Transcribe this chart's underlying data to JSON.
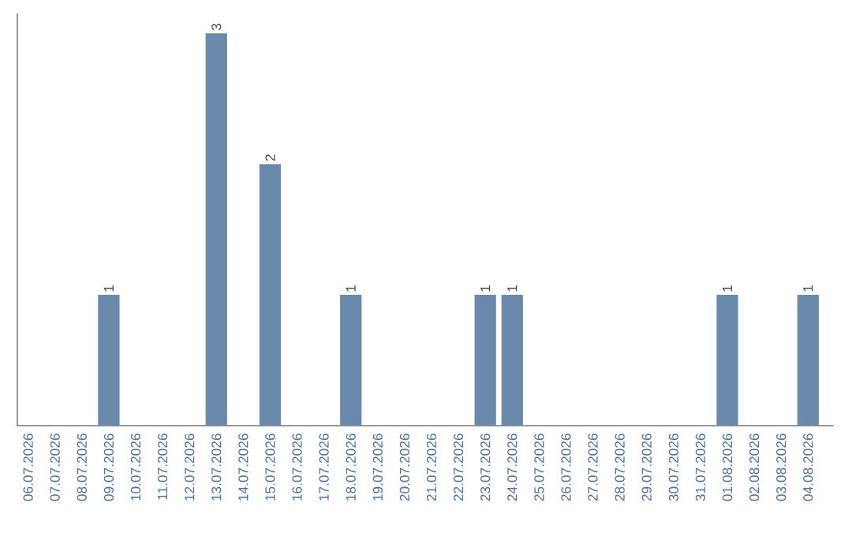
{
  "chart_data": {
    "type": "bar",
    "categories": [
      "06.07.2026",
      "07.07.2026",
      "08.07.2026",
      "09.07.2026",
      "10.07.2026",
      "11.07.2026",
      "12.07.2026",
      "13.07.2026",
      "14.07.2026",
      "15.07.2026",
      "16.07.2026",
      "17.07.2026",
      "18.07.2026",
      "19.07.2026",
      "20.07.2026",
      "21.07.2026",
      "22.07.2026",
      "23.07.2026",
      "24.07.2026",
      "25.07.2026",
      "26.07.2026",
      "27.07.2026",
      "28.07.2026",
      "29.07.2026",
      "30.07.2026",
      "31.07.2026",
      "01.08.2026",
      "02.08.2026",
      "03.08.2026",
      "04.08.2026"
    ],
    "values": [
      0,
      0,
      0,
      1,
      0,
      0,
      0,
      3,
      0,
      2,
      0,
      0,
      1,
      0,
      0,
      0,
      0,
      1,
      1,
      0,
      0,
      0,
      0,
      0,
      0,
      0,
      1,
      0,
      0,
      1
    ],
    "value_labels": [
      null,
      null,
      null,
      "1",
      null,
      null,
      null,
      "3",
      null,
      "2",
      null,
      null,
      "1",
      null,
      null,
      null,
      null,
      "1",
      "1",
      null,
      null,
      null,
      null,
      null,
      null,
      null,
      "1",
      null,
      null,
      "1"
    ],
    "color": "#6a8aab"
  }
}
